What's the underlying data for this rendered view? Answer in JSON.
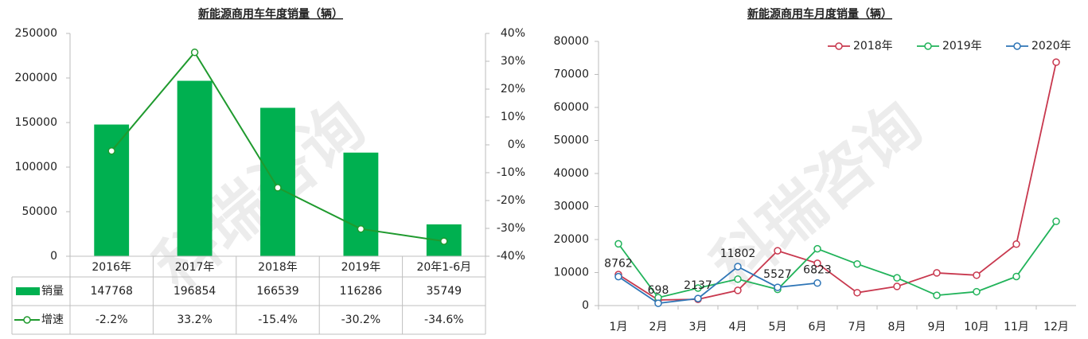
{
  "watermark": "科瑞咨询",
  "chart_data": [
    {
      "type": "combo",
      "title": "新能源商用车年度销量（辆）",
      "categories": [
        "2016年",
        "2017年",
        "2018年",
        "2019年",
        "20年1-6月"
      ],
      "series": [
        {
          "name": "销量",
          "type": "bar",
          "color": "#00b050",
          "values": [
            147768,
            196854,
            166539,
            116286,
            35749
          ]
        },
        {
          "name": "增速",
          "type": "line",
          "axis": "y2",
          "color": "#1f9a2e",
          "values": [
            -2.2,
            33.2,
            -15.4,
            -30.2,
            -34.6
          ],
          "value_labels": [
            "-2.2%",
            "33.2%",
            "-15.4%",
            "-30.2%",
            "-34.6%"
          ]
        }
      ],
      "ylim": [
        0,
        250000
      ],
      "yticks": [
        0,
        50000,
        100000,
        150000,
        200000,
        250000
      ],
      "y2lim": [
        -40,
        40
      ],
      "y2ticks": [
        {
          "value": -40,
          "label": "-40%"
        },
        {
          "value": -30,
          "label": "-30%"
        },
        {
          "value": -20,
          "label": "-20%"
        },
        {
          "value": -10,
          "label": "-10%"
        },
        {
          "value": 0,
          "label": "0%"
        },
        {
          "value": 10,
          "label": "10%"
        },
        {
          "value": 20,
          "label": "20%"
        },
        {
          "value": 30,
          "label": "30%"
        },
        {
          "value": 40,
          "label": "40%"
        }
      ],
      "data_table": true
    },
    {
      "type": "line",
      "title": "新能源商用车月度销量（辆）",
      "categories": [
        "1月",
        "2月",
        "3月",
        "4月",
        "5月",
        "6月",
        "7月",
        "8月",
        "9月",
        "10月",
        "11月",
        "12月"
      ],
      "series": [
        {
          "name": "2018年",
          "color": "#c8384e",
          "values": [
            9400,
            1700,
            1900,
            4600,
            16600,
            12800,
            3900,
            5800,
            9900,
            9200,
            18600,
            73700
          ]
        },
        {
          "name": "2019年",
          "color": "#21b35a",
          "values": [
            18700,
            2400,
            5300,
            8000,
            4900,
            17200,
            12600,
            8400,
            3100,
            4200,
            8800,
            25500
          ]
        },
        {
          "name": "2020年",
          "color": "#2e75b6",
          "values": [
            8762,
            698,
            2137,
            11802,
            5527,
            6823,
            null,
            null,
            null,
            null,
            null,
            null
          ],
          "data_labels": true
        }
      ],
      "ylim": [
        0,
        80000
      ],
      "yticks": [
        0,
        10000,
        20000,
        30000,
        40000,
        50000,
        60000,
        70000,
        80000
      ],
      "legend": "top-right"
    }
  ]
}
